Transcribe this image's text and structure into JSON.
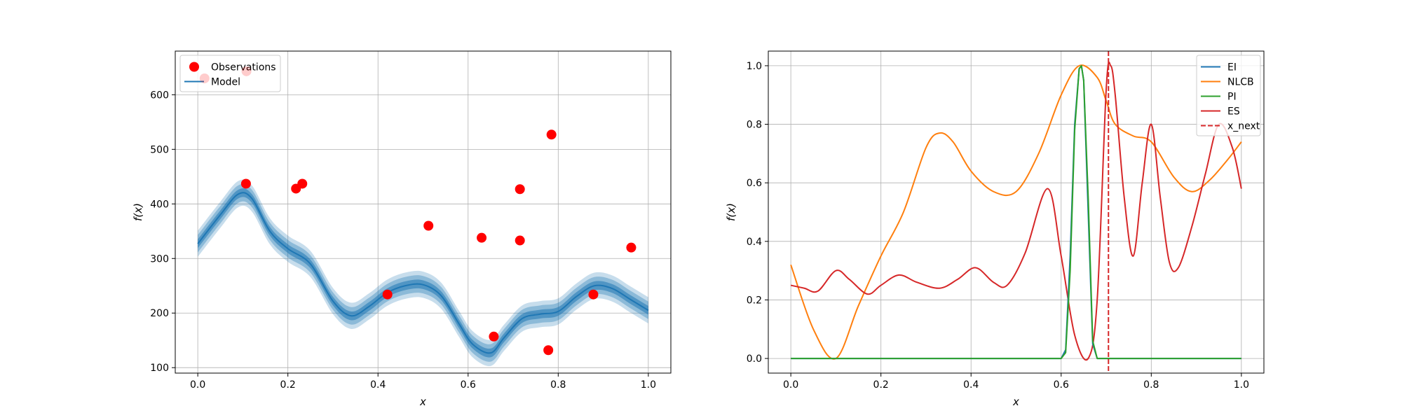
{
  "chart_data": [
    {
      "type": "line",
      "subtype": "gaussian-process-fit",
      "xlabel": "x",
      "ylabel": "f(x)",
      "xlim": [
        -0.05,
        1.05
      ],
      "ylim": [
        90,
        680
      ],
      "xticks": [
        0.0,
        0.2,
        0.4,
        0.6,
        0.8,
        1.0
      ],
      "xtick_labels": [
        "0.0",
        "0.2",
        "0.4",
        "0.6",
        "0.8",
        "1.0"
      ],
      "yticks": [
        100,
        200,
        300,
        400,
        500,
        600
      ],
      "ytick_labels": [
        "100",
        "200",
        "300",
        "400",
        "500",
        "600"
      ],
      "grid": true,
      "legend": {
        "placement": "upper-left",
        "entries": [
          {
            "label": "Observations",
            "marker": "circle",
            "color": "#ff0000"
          },
          {
            "label": "Model",
            "marker": "line",
            "color": "#1f77b4"
          }
        ]
      },
      "observations": {
        "name": "Observations",
        "color": "#ff0000",
        "points": [
          {
            "x": 0.015,
            "y": 630
          },
          {
            "x": 0.108,
            "y": 643
          },
          {
            "x": 0.107,
            "y": 437
          },
          {
            "x": 0.218,
            "y": 428
          },
          {
            "x": 0.232,
            "y": 437
          },
          {
            "x": 0.421,
            "y": 234
          },
          {
            "x": 0.512,
            "y": 360
          },
          {
            "x": 0.63,
            "y": 338
          },
          {
            "x": 0.657,
            "y": 157
          },
          {
            "x": 0.715,
            "y": 427
          },
          {
            "x": 0.715,
            "y": 333
          },
          {
            "x": 0.778,
            "y": 132
          },
          {
            "x": 0.785,
            "y": 527
          },
          {
            "x": 0.878,
            "y": 234
          },
          {
            "x": 0.962,
            "y": 320
          }
        ]
      },
      "model": {
        "name": "Model",
        "color": "#1f77b4",
        "band_color": "#1f77b4",
        "x": [
          0.0,
          0.05,
          0.09,
          0.12,
          0.16,
          0.2,
          0.25,
          0.3,
          0.34,
          0.38,
          0.42,
          0.46,
          0.5,
          0.54,
          0.58,
          0.61,
          0.65,
          0.68,
          0.72,
          0.76,
          0.8,
          0.84,
          0.88,
          0.92,
          0.96,
          1.0
        ],
        "mean": [
          327,
          380,
          418,
          410,
          350,
          318,
          290,
          222,
          195,
          212,
          237,
          250,
          252,
          232,
          180,
          143,
          127,
          155,
          190,
          198,
          203,
          230,
          250,
          245,
          225,
          205
        ],
        "band_widths": [
          8,
          16,
          24
        ]
      }
    },
    {
      "type": "line",
      "subtype": "acquisition-functions",
      "xlabel": "x",
      "ylabel": "f(x)",
      "xlim": [
        -0.05,
        1.05
      ],
      "ylim": [
        -0.05,
        1.05
      ],
      "xticks": [
        0.0,
        0.2,
        0.4,
        0.6,
        0.8,
        1.0
      ],
      "xtick_labels": [
        "0.0",
        "0.2",
        "0.4",
        "0.6",
        "0.8",
        "1.0"
      ],
      "yticks": [
        0.0,
        0.2,
        0.4,
        0.6,
        0.8,
        1.0
      ],
      "ytick_labels": [
        "0.0",
        "0.2",
        "0.4",
        "0.6",
        "0.8",
        "1.0"
      ],
      "grid": true,
      "legend": {
        "placement": "upper-right",
        "entries": [
          {
            "label": "EI",
            "style": "solid",
            "color": "#1f77b4"
          },
          {
            "label": "NLCB",
            "style": "solid",
            "color": "#ff7f0e"
          },
          {
            "label": "PI",
            "style": "solid",
            "color": "#2ca02c"
          },
          {
            "label": "ES",
            "style": "solid",
            "color": "#d62728"
          },
          {
            "label": "x_next",
            "style": "dashed",
            "color": "#d62728"
          }
        ]
      },
      "series": [
        {
          "name": "EI",
          "color": "#1f77b4",
          "x": [
            0.0,
            0.6,
            0.61,
            0.62,
            0.63,
            0.64,
            0.645,
            0.65,
            0.66,
            0.67,
            0.68,
            1.0
          ],
          "values": [
            0,
            0,
            0.03,
            0.35,
            0.8,
            0.99,
            1.0,
            0.95,
            0.5,
            0.05,
            0,
            0
          ]
        },
        {
          "name": "NLCB",
          "color": "#ff7f0e",
          "x": [
            0.0,
            0.05,
            0.1,
            0.15,
            0.2,
            0.25,
            0.3,
            0.33,
            0.36,
            0.4,
            0.45,
            0.5,
            0.55,
            0.6,
            0.64,
            0.68,
            0.7,
            0.72,
            0.76,
            0.8,
            0.85,
            0.89,
            0.93,
            0.97,
            1.0
          ],
          "values": [
            0.32,
            0.1,
            0.0,
            0.18,
            0.35,
            0.5,
            0.72,
            0.77,
            0.74,
            0.64,
            0.57,
            0.57,
            0.7,
            0.9,
            1.0,
            0.96,
            0.88,
            0.8,
            0.76,
            0.74,
            0.62,
            0.57,
            0.61,
            0.68,
            0.74
          ]
        },
        {
          "name": "PI",
          "color": "#2ca02c",
          "x": [
            0.0,
            0.6,
            0.61,
            0.62,
            0.63,
            0.64,
            0.645,
            0.65,
            0.66,
            0.67,
            0.68,
            1.0
          ],
          "values": [
            0,
            0,
            0.02,
            0.3,
            0.78,
            0.99,
            1.0,
            0.95,
            0.55,
            0.06,
            0,
            0
          ]
        },
        {
          "name": "ES",
          "color": "#d62728",
          "x": [
            0.0,
            0.03,
            0.06,
            0.1,
            0.13,
            0.17,
            0.2,
            0.24,
            0.28,
            0.33,
            0.37,
            0.41,
            0.45,
            0.48,
            0.52,
            0.57,
            0.6,
            0.63,
            0.66,
            0.68,
            0.7,
            0.71,
            0.72,
            0.74,
            0.76,
            0.78,
            0.8,
            0.82,
            0.84,
            0.86,
            0.89,
            0.92,
            0.95,
            0.98,
            1.0
          ],
          "values": [
            0.25,
            0.24,
            0.23,
            0.3,
            0.27,
            0.22,
            0.25,
            0.285,
            0.26,
            0.24,
            0.27,
            0.31,
            0.26,
            0.25,
            0.36,
            0.58,
            0.35,
            0.08,
            0.0,
            0.2,
            0.92,
            1.0,
            0.9,
            0.55,
            0.35,
            0.6,
            0.8,
            0.55,
            0.33,
            0.31,
            0.45,
            0.63,
            0.8,
            0.72,
            0.58
          ]
        }
      ],
      "vline": {
        "name": "x_next",
        "x": 0.705,
        "color": "#d62728",
        "style": "dashed"
      }
    }
  ]
}
